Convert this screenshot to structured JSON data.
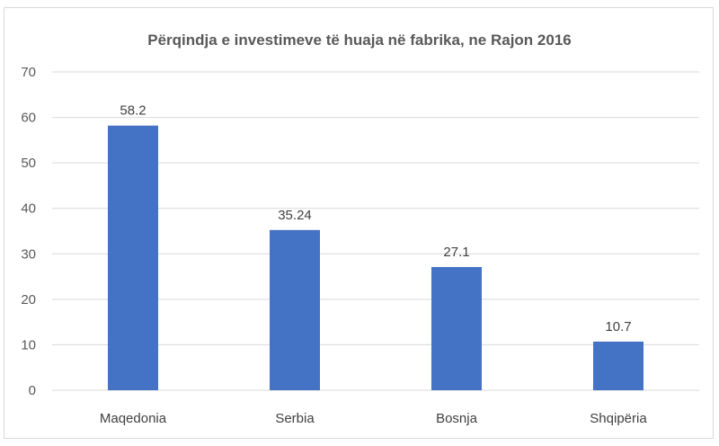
{
  "chart_data": {
    "type": "bar",
    "title": "Përqindja e investimeve të huaja në fabrika, ne Rajon 2016",
    "categories": [
      "Maqedonia",
      "Serbia",
      "Bosnja",
      "Shqipëria"
    ],
    "values": [
      58.2,
      35.24,
      27.1,
      10.7
    ],
    "data_labels": [
      "58.2",
      "35.24",
      "27.1",
      "10.7"
    ],
    "xlabel": "",
    "ylabel": "",
    "ylim": [
      0,
      70
    ],
    "yticks": [
      0,
      10,
      20,
      30,
      40,
      50,
      60,
      70
    ],
    "grid": true,
    "legend": "none",
    "bar_color": "#4472c4"
  }
}
